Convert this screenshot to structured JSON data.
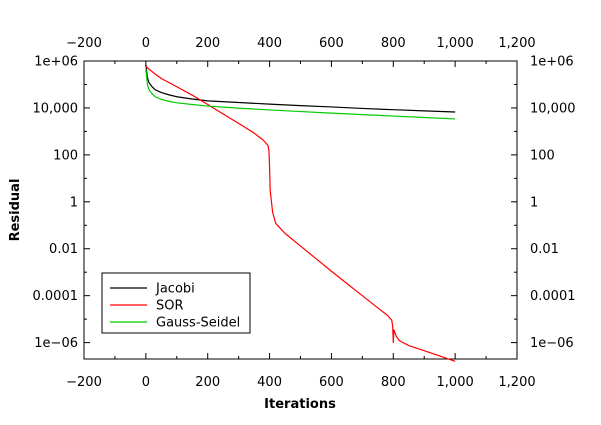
{
  "chart_data": {
    "type": "line",
    "title": "",
    "xlabel": "Iterations",
    "ylabel": "Residual",
    "x_scale": "linear",
    "y_scale": "log",
    "xlim": [
      -200,
      1200
    ],
    "ylim": [
      2e-07,
      1000000.0
    ],
    "x_ticks": [
      -200,
      0,
      200,
      400,
      600,
      800,
      1000,
      1200
    ],
    "x_tick_labels": [
      "−200",
      "0",
      "200",
      "400",
      "600",
      "800",
      "1,000",
      "1,200"
    ],
    "y_ticks": [
      1000000.0,
      10000.0,
      100,
      1,
      0.01,
      0.0001,
      1e-06
    ],
    "y_tick_labels": [
      "1e+06",
      "10,000",
      "100",
      "1",
      "0.01",
      "0.0001",
      "1e−06"
    ],
    "grid": false,
    "legend_position": "bottom-left",
    "series": [
      {
        "name": "Jacobi",
        "color": "#000000",
        "x": [
          0,
          5,
          10,
          20,
          30,
          50,
          75,
          100,
          150,
          200,
          300,
          400,
          500,
          600,
          700,
          800,
          900,
          1000
        ],
        "y": [
          700000,
          200000,
          120000,
          80000,
          60000,
          45000,
          36000,
          30000,
          24000,
          20000,
          17000,
          14500,
          12500,
          11000,
          9500,
          8400,
          7500,
          6700
        ]
      },
      {
        "name": "SOR",
        "color": "#ff0000",
        "x": [
          0,
          10,
          30,
          50,
          100,
          150,
          200,
          250,
          300,
          350,
          380,
          395,
          398,
          400,
          402,
          410,
          420,
          450,
          500,
          550,
          600,
          650,
          700,
          750,
          780,
          795,
          798,
          800,
          802,
          810,
          820,
          850,
          900,
          950,
          1000
        ],
        "y": [
          600000,
          450000,
          280000,
          180000,
          80000,
          35000,
          14000,
          5500,
          2200,
          850,
          420,
          250,
          150,
          30,
          3,
          0.35,
          0.12,
          0.045,
          0.013,
          0.0038,
          0.0011,
          0.00033,
          0.0001,
          3e-05,
          1.5e-05,
          9e-06,
          5e-06,
          1e-06,
          3.5e-06,
          1.8e-06,
          1.2e-06,
          7.5e-07,
          4.5e-07,
          2.7e-07,
          1.6e-07
        ]
      },
      {
        "name": "Gauss-Seidel",
        "color": "#00cc00",
        "x": [
          0,
          5,
          10,
          20,
          30,
          50,
          75,
          100,
          150,
          200,
          300,
          400,
          500,
          600,
          700,
          800,
          900,
          1000
        ],
        "y": [
          450000,
          100000,
          60000,
          40000,
          30000,
          23000,
          19000,
          16500,
          14000,
          12000,
          9800,
          8200,
          7000,
          6000,
          5200,
          4500,
          3900,
          3400
        ]
      }
    ]
  }
}
